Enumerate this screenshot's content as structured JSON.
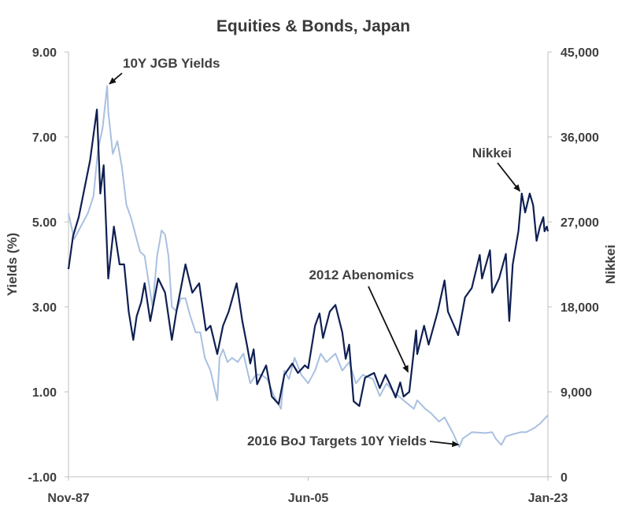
{
  "chart_data": {
    "type": "line",
    "title": "Equities & Bonds, Japan",
    "ylabel": "Yields  (%)",
    "y2label": "Nikkei",
    "ylim": [
      -1,
      9
    ],
    "y2lim": [
      0,
      45000
    ],
    "xlim": [
      "1987-11",
      "2023-01"
    ],
    "yticks": [
      "9.00",
      "7.00",
      "5.00",
      "3.00",
      "1.00",
      "-1.00"
    ],
    "y2ticks": [
      "45,000",
      "36,000",
      "27,000",
      "18,000",
      "9,000",
      "0"
    ],
    "xticks": [
      {
        "date": "1987-11",
        "label": "Nov-87"
      },
      {
        "date": "2005-06",
        "label": "Jun-05"
      },
      {
        "date": "2023-01",
        "label": "Jan-23"
      }
    ],
    "grid": false,
    "series": [
      {
        "name": "10Y JGB Yields",
        "axis": "left",
        "color": "#a9c0e0",
        "points": [
          [
            "1987-11",
            5.2
          ],
          [
            "1988-04",
            4.6
          ],
          [
            "1988-10",
            4.9
          ],
          [
            "1989-04",
            5.2
          ],
          [
            "1989-09",
            5.6
          ],
          [
            "1990-01",
            6.7
          ],
          [
            "1990-05",
            7.2
          ],
          [
            "1990-09",
            8.2
          ],
          [
            "1990-10",
            7.6
          ],
          [
            "1991-02",
            6.6
          ],
          [
            "1991-06",
            6.9
          ],
          [
            "1991-10",
            6.3
          ],
          [
            "1992-02",
            5.4
          ],
          [
            "1992-06",
            5.1
          ],
          [
            "1992-10",
            4.7
          ],
          [
            "1993-02",
            4.3
          ],
          [
            "1993-06",
            4.2
          ],
          [
            "1993-10",
            3.5
          ],
          [
            "1994-01",
            3.0
          ],
          [
            "1994-05",
            4.2
          ],
          [
            "1994-09",
            4.8
          ],
          [
            "1994-12",
            4.7
          ],
          [
            "1995-03",
            4.2
          ],
          [
            "1995-06",
            3.0
          ],
          [
            "1995-10",
            2.9
          ],
          [
            "1996-02",
            3.2
          ],
          [
            "1996-06",
            3.2
          ],
          [
            "1996-10",
            2.8
          ],
          [
            "1997-03",
            2.4
          ],
          [
            "1997-07",
            2.4
          ],
          [
            "1997-11",
            1.8
          ],
          [
            "1998-04",
            1.5
          ],
          [
            "1998-10",
            0.8
          ],
          [
            "1998-12",
            1.8
          ],
          [
            "1999-03",
            2.0
          ],
          [
            "1999-07",
            1.7
          ],
          [
            "1999-11",
            1.8
          ],
          [
            "2000-04",
            1.7
          ],
          [
            "2000-09",
            1.9
          ],
          [
            "2001-03",
            1.2
          ],
          [
            "2001-08",
            1.4
          ],
          [
            "2002-01",
            1.4
          ],
          [
            "2002-06",
            1.3
          ],
          [
            "2002-12",
            0.9
          ],
          [
            "2003-06",
            0.6
          ],
          [
            "2003-09",
            1.5
          ],
          [
            "2004-01",
            1.3
          ],
          [
            "2004-06",
            1.8
          ],
          [
            "2004-12",
            1.4
          ],
          [
            "2005-06",
            1.2
          ],
          [
            "2005-12",
            1.5
          ],
          [
            "2006-05",
            1.9
          ],
          [
            "2006-10",
            1.7
          ],
          [
            "2007-06",
            1.9
          ],
          [
            "2007-12",
            1.5
          ],
          [
            "2008-06",
            1.7
          ],
          [
            "2008-12",
            1.2
          ],
          [
            "2009-06",
            1.4
          ],
          [
            "2010-03",
            1.3
          ],
          [
            "2010-09",
            0.9
          ],
          [
            "2011-03",
            1.2
          ],
          [
            "2011-09",
            1.0
          ],
          [
            "2012-06",
            0.8
          ],
          [
            "2013-03",
            0.6
          ],
          [
            "2013-06",
            0.8
          ],
          [
            "2014-01",
            0.6
          ],
          [
            "2014-06",
            0.5
          ],
          [
            "2015-01",
            0.3
          ],
          [
            "2015-06",
            0.4
          ],
          [
            "2016-02",
            0.0
          ],
          [
            "2016-07",
            -0.3
          ],
          [
            "2016-10",
            -0.1
          ],
          [
            "2017-06",
            0.05
          ],
          [
            "2018-06",
            0.03
          ],
          [
            "2018-12",
            0.05
          ],
          [
            "2019-03",
            -0.1
          ],
          [
            "2019-08",
            -0.25
          ],
          [
            "2019-12",
            -0.05
          ],
          [
            "2020-06",
            0.0
          ],
          [
            "2021-01",
            0.05
          ],
          [
            "2021-06",
            0.05
          ],
          [
            "2022-01",
            0.15
          ],
          [
            "2022-06",
            0.25
          ],
          [
            "2023-01",
            0.45
          ]
        ]
      },
      {
        "name": "Nikkei",
        "axis": "right",
        "color": "#0f1f52",
        "points": [
          [
            "1987-11",
            22000
          ],
          [
            "1988-03",
            25500
          ],
          [
            "1988-08",
            27500
          ],
          [
            "1989-01",
            30500
          ],
          [
            "1989-06",
            33500
          ],
          [
            "1989-12",
            38900
          ],
          [
            "1990-03",
            30000
          ],
          [
            "1990-06",
            33000
          ],
          [
            "1990-10",
            21000
          ],
          [
            "1991-03",
            26500
          ],
          [
            "1991-08",
            22500
          ],
          [
            "1991-12",
            22500
          ],
          [
            "1992-04",
            17500
          ],
          [
            "1992-08",
            14500
          ],
          [
            "1992-11",
            17000
          ],
          [
            "1993-03",
            18500
          ],
          [
            "1993-06",
            20500
          ],
          [
            "1993-11",
            16500
          ],
          [
            "1994-06",
            21000
          ],
          [
            "1994-12",
            19500
          ],
          [
            "1995-06",
            14500
          ],
          [
            "1995-10",
            17500
          ],
          [
            "1996-06",
            22500
          ],
          [
            "1996-12",
            19500
          ],
          [
            "1997-06",
            20500
          ],
          [
            "1997-12",
            15500
          ],
          [
            "1998-04",
            16000
          ],
          [
            "1998-10",
            13000
          ],
          [
            "1999-03",
            16000
          ],
          [
            "1999-08",
            17500
          ],
          [
            "2000-03",
            20500
          ],
          [
            "2000-08",
            16500
          ],
          [
            "2000-12",
            14000
          ],
          [
            "2001-03",
            12000
          ],
          [
            "2001-06",
            13500
          ],
          [
            "2001-09",
            9800
          ],
          [
            "2002-05",
            11800
          ],
          [
            "2002-10",
            8500
          ],
          [
            "2003-04",
            7700
          ],
          [
            "2003-09",
            10800
          ],
          [
            "2004-04",
            12000
          ],
          [
            "2004-09",
            11000
          ],
          [
            "2005-03",
            11800
          ],
          [
            "2005-06",
            11500
          ],
          [
            "2005-12",
            16000
          ],
          [
            "2006-04",
            17300
          ],
          [
            "2006-07",
            14700
          ],
          [
            "2007-01",
            17500
          ],
          [
            "2007-06",
            18200
          ],
          [
            "2007-12",
            15300
          ],
          [
            "2008-03",
            12500
          ],
          [
            "2008-06",
            14000
          ],
          [
            "2008-10",
            8000
          ],
          [
            "2009-03",
            7500
          ],
          [
            "2009-08",
            10500
          ],
          [
            "2010-04",
            11000
          ],
          [
            "2010-09",
            9400
          ],
          [
            "2011-02",
            10800
          ],
          [
            "2011-06",
            9800
          ],
          [
            "2011-11",
            8400
          ],
          [
            "2012-03",
            10000
          ],
          [
            "2012-06",
            8500
          ],
          [
            "2012-11",
            9000
          ],
          [
            "2013-05",
            15500
          ],
          [
            "2013-06",
            13000
          ],
          [
            "2013-12",
            16000
          ],
          [
            "2014-04",
            14000
          ],
          [
            "2014-12",
            17500
          ],
          [
            "2015-06",
            20800
          ],
          [
            "2015-09",
            17500
          ],
          [
            "2016-06",
            15000
          ],
          [
            "2016-12",
            19000
          ],
          [
            "2017-06",
            20000
          ],
          [
            "2018-01",
            23500
          ],
          [
            "2018-03",
            21000
          ],
          [
            "2018-10",
            24000
          ],
          [
            "2018-12",
            19500
          ],
          [
            "2019-06",
            21000
          ],
          [
            "2019-12",
            23600
          ],
          [
            "2020-03",
            16500
          ],
          [
            "2020-06",
            22500
          ],
          [
            "2020-11",
            26000
          ],
          [
            "2021-02",
            30000
          ],
          [
            "2021-05",
            28000
          ],
          [
            "2021-09",
            30000
          ],
          [
            "2021-12",
            28800
          ],
          [
            "2022-03",
            25000
          ],
          [
            "2022-06",
            26500
          ],
          [
            "2022-09",
            27500
          ],
          [
            "2022-10",
            26000
          ],
          [
            "2022-12",
            26500
          ],
          [
            "2023-01",
            26000
          ]
        ]
      }
    ],
    "annotations": [
      {
        "text": "10Y JGB Yields",
        "date": "1990-09",
        "value": 8.2,
        "axis": "left"
      },
      {
        "text": "Nikkei",
        "date": "2021-02",
        "value": 30000,
        "axis": "right"
      },
      {
        "text": "2012 Abenomics",
        "date": "2012-11",
        "value": 10800,
        "axis": "right"
      },
      {
        "text": "2016 BoJ Targets 10Y Yields",
        "date": "2016-09",
        "value": -0.25,
        "axis": "left"
      }
    ]
  }
}
